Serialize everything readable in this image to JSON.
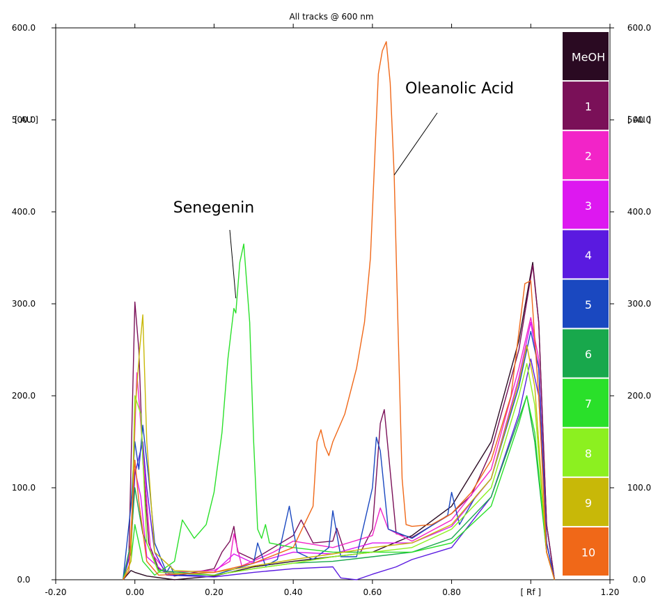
{
  "chart_data": {
    "type": "line",
    "title": "All tracks @ 600 nm",
    "y_unit_label": "[ AU ]",
    "x_unit_label": "[ Rf ]",
    "xlim": [
      -0.2,
      1.2
    ],
    "ylim": [
      0,
      600
    ],
    "x_ticks": [
      "-0.20",
      "0.00",
      "0.20",
      "0.40",
      "0.60",
      "0.80",
      "[ Rf ]",
      "1.20"
    ],
    "x_tick_values": [
      -0.2,
      0.0,
      0.2,
      0.4,
      0.6,
      0.8,
      1.0,
      1.2
    ],
    "y_ticks": [
      "0.0",
      "100.0",
      "200.0",
      "300.0",
      "400.0",
      "500.0",
      "600.0"
    ],
    "y_tick_values": [
      0,
      100,
      200,
      300,
      400,
      500,
      600
    ],
    "legend": {
      "placement": "right",
      "entries": [
        {
          "label": "MeOH",
          "color": "#2a0a22"
        },
        {
          "label": "1",
          "color": "#7a1058"
        },
        {
          "label": "2",
          "color": "#f224c8"
        },
        {
          "label": "3",
          "color": "#dd18f0"
        },
        {
          "label": "4",
          "color": "#5a1ae0"
        },
        {
          "label": "5",
          "color": "#1a48c0"
        },
        {
          "label": "6",
          "color": "#18a84c"
        },
        {
          "label": "7",
          "color": "#2ae02a"
        },
        {
          "label": "8",
          "color": "#8cf020"
        },
        {
          "label": "9",
          "color": "#c8b808"
        },
        {
          "label": "10",
          "color": "#f06818"
        }
      ]
    },
    "annotations": [
      {
        "text": "Oleanolic Acid",
        "points_to": [
          0.655,
          440
        ]
      },
      {
        "text": "Senegenin",
        "points_to": [
          0.255,
          306
        ]
      }
    ],
    "series": [
      {
        "color": "#2a0a22",
        "points": [
          [
            -0.03,
            0
          ],
          [
            -0.01,
            10
          ],
          [
            0.0,
            8
          ],
          [
            0.03,
            4
          ],
          [
            0.1,
            0
          ],
          [
            0.2,
            4
          ],
          [
            0.3,
            14
          ],
          [
            0.4,
            20
          ],
          [
            0.5,
            25
          ],
          [
            0.6,
            30
          ],
          [
            0.7,
            48
          ],
          [
            0.8,
            80
          ],
          [
            0.9,
            150
          ],
          [
            0.97,
            260
          ],
          [
            1.005,
            345
          ],
          [
            1.02,
            280
          ],
          [
            1.04,
            60
          ],
          [
            1.06,
            0
          ]
        ]
      },
      {
        "color": "#7a1058",
        "points": [
          [
            -0.03,
            0
          ],
          [
            -0.015,
            30
          ],
          [
            0.0,
            302
          ],
          [
            0.01,
            250
          ],
          [
            0.02,
            130
          ],
          [
            0.035,
            40
          ],
          [
            0.06,
            12
          ],
          [
            0.1,
            4
          ],
          [
            0.2,
            12
          ],
          [
            0.22,
            30
          ],
          [
            0.24,
            42
          ],
          [
            0.25,
            58
          ],
          [
            0.26,
            30
          ],
          [
            0.3,
            22
          ],
          [
            0.35,
            35
          ],
          [
            0.4,
            48
          ],
          [
            0.42,
            65
          ],
          [
            0.45,
            40
          ],
          [
            0.5,
            42
          ],
          [
            0.51,
            56
          ],
          [
            0.53,
            30
          ],
          [
            0.57,
            30
          ],
          [
            0.6,
            55
          ],
          [
            0.62,
            170
          ],
          [
            0.63,
            185
          ],
          [
            0.64,
            140
          ],
          [
            0.66,
            50
          ],
          [
            0.7,
            46
          ],
          [
            0.8,
            72
          ],
          [
            0.85,
            92
          ],
          [
            0.9,
            140
          ],
          [
            0.97,
            250
          ],
          [
            1.005,
            342
          ],
          [
            1.02,
            280
          ],
          [
            1.04,
            60
          ],
          [
            1.06,
            0
          ]
        ]
      },
      {
        "color": "#f224c8",
        "points": [
          [
            -0.03,
            0
          ],
          [
            -0.01,
            40
          ],
          [
            0.005,
            225
          ],
          [
            0.02,
            140
          ],
          [
            0.04,
            30
          ],
          [
            0.08,
            8
          ],
          [
            0.2,
            10
          ],
          [
            0.24,
            20
          ],
          [
            0.25,
            50
          ],
          [
            0.27,
            15
          ],
          [
            0.35,
            30
          ],
          [
            0.4,
            42
          ],
          [
            0.5,
            35
          ],
          [
            0.6,
            48
          ],
          [
            0.62,
            78
          ],
          [
            0.64,
            55
          ],
          [
            0.7,
            42
          ],
          [
            0.8,
            65
          ],
          [
            0.9,
            120
          ],
          [
            0.97,
            230
          ],
          [
            1.0,
            285
          ],
          [
            1.02,
            240
          ],
          [
            1.04,
            40
          ],
          [
            1.06,
            0
          ]
        ]
      },
      {
        "color": "#dd18f0",
        "points": [
          [
            -0.03,
            0
          ],
          [
            -0.01,
            35
          ],
          [
            0.0,
            120
          ],
          [
            0.015,
            90
          ],
          [
            0.03,
            25
          ],
          [
            0.08,
            6
          ],
          [
            0.2,
            8
          ],
          [
            0.25,
            28
          ],
          [
            0.3,
            18
          ],
          [
            0.4,
            30
          ],
          [
            0.5,
            28
          ],
          [
            0.6,
            40
          ],
          [
            0.7,
            40
          ],
          [
            0.8,
            58
          ],
          [
            0.9,
            110
          ],
          [
            0.97,
            220
          ],
          [
            1.0,
            280
          ],
          [
            1.02,
            230
          ],
          [
            1.04,
            40
          ],
          [
            1.06,
            0
          ]
        ]
      },
      {
        "color": "#5a1ae0",
        "points": [
          [
            -0.03,
            0
          ],
          [
            -0.01,
            30
          ],
          [
            0.0,
            115
          ],
          [
            0.02,
            150
          ],
          [
            0.03,
            100
          ],
          [
            0.05,
            30
          ],
          [
            0.08,
            5
          ],
          [
            0.2,
            3
          ],
          [
            0.3,
            8
          ],
          [
            0.4,
            12
          ],
          [
            0.5,
            14
          ],
          [
            0.52,
            2
          ],
          [
            0.56,
            0
          ],
          [
            0.6,
            6
          ],
          [
            0.66,
            14
          ],
          [
            0.7,
            22
          ],
          [
            0.8,
            35
          ],
          [
            0.9,
            90
          ],
          [
            0.97,
            180
          ],
          [
            1.0,
            240
          ],
          [
            1.02,
            200
          ],
          [
            1.04,
            40
          ],
          [
            1.06,
            0
          ]
        ]
      },
      {
        "color": "#1a48c0",
        "points": [
          [
            -0.03,
            0
          ],
          [
            -0.01,
            80
          ],
          [
            0.0,
            150
          ],
          [
            0.01,
            120
          ],
          [
            0.02,
            168
          ],
          [
            0.035,
            110
          ],
          [
            0.05,
            40
          ],
          [
            0.08,
            8
          ],
          [
            0.09,
            15
          ],
          [
            0.1,
            5
          ],
          [
            0.2,
            5
          ],
          [
            0.3,
            18
          ],
          [
            0.31,
            40
          ],
          [
            0.33,
            15
          ],
          [
            0.36,
            22
          ],
          [
            0.39,
            80
          ],
          [
            0.41,
            30
          ],
          [
            0.45,
            22
          ],
          [
            0.49,
            35
          ],
          [
            0.5,
            75
          ],
          [
            0.52,
            25
          ],
          [
            0.56,
            25
          ],
          [
            0.6,
            100
          ],
          [
            0.61,
            155
          ],
          [
            0.62,
            140
          ],
          [
            0.64,
            55
          ],
          [
            0.7,
            45
          ],
          [
            0.79,
            70
          ],
          [
            0.8,
            95
          ],
          [
            0.82,
            60
          ],
          [
            0.86,
            90
          ],
          [
            0.9,
            110
          ],
          [
            0.97,
            210
          ],
          [
            1.0,
            270
          ],
          [
            1.02,
            230
          ],
          [
            1.04,
            40
          ],
          [
            1.06,
            0
          ]
        ]
      },
      {
        "color": "#18a84c",
        "points": [
          [
            -0.03,
            0
          ],
          [
            -0.01,
            40
          ],
          [
            0.0,
            100
          ],
          [
            0.02,
            50
          ],
          [
            0.06,
            10
          ],
          [
            0.2,
            5
          ],
          [
            0.3,
            12
          ],
          [
            0.4,
            18
          ],
          [
            0.5,
            20
          ],
          [
            0.6,
            25
          ],
          [
            0.7,
            30
          ],
          [
            0.8,
            45
          ],
          [
            0.9,
            90
          ],
          [
            0.97,
            175
          ],
          [
            0.99,
            200
          ],
          [
            1.01,
            150
          ],
          [
            1.04,
            30
          ],
          [
            1.06,
            0
          ]
        ]
      },
      {
        "color": "#2ae02a",
        "points": [
          [
            -0.03,
            0
          ],
          [
            -0.01,
            20
          ],
          [
            0.0,
            60
          ],
          [
            0.02,
            20
          ],
          [
            0.05,
            5
          ],
          [
            0.1,
            20
          ],
          [
            0.12,
            65
          ],
          [
            0.15,
            45
          ],
          [
            0.18,
            60
          ],
          [
            0.2,
            95
          ],
          [
            0.22,
            160
          ],
          [
            0.235,
            240
          ],
          [
            0.25,
            295
          ],
          [
            0.255,
            290
          ],
          [
            0.265,
            345
          ],
          [
            0.275,
            365
          ],
          [
            0.29,
            280
          ],
          [
            0.3,
            150
          ],
          [
            0.31,
            55
          ],
          [
            0.32,
            45
          ],
          [
            0.33,
            60
          ],
          [
            0.34,
            40
          ],
          [
            0.4,
            35
          ],
          [
            0.5,
            30
          ],
          [
            0.6,
            30
          ],
          [
            0.7,
            30
          ],
          [
            0.8,
            40
          ],
          [
            0.9,
            80
          ],
          [
            0.97,
            170
          ],
          [
            0.99,
            200
          ],
          [
            1.01,
            160
          ],
          [
            1.04,
            30
          ],
          [
            1.06,
            0
          ]
        ]
      },
      {
        "color": "#8cf020",
        "points": [
          [
            -0.03,
            0
          ],
          [
            -0.01,
            20
          ],
          [
            0.0,
            200
          ],
          [
            0.015,
            180
          ],
          [
            0.03,
            40
          ],
          [
            0.06,
            8
          ],
          [
            0.2,
            5
          ],
          [
            0.3,
            12
          ],
          [
            0.4,
            18
          ],
          [
            0.5,
            25
          ],
          [
            0.6,
            30
          ],
          [
            0.7,
            35
          ],
          [
            0.8,
            55
          ],
          [
            0.9,
            100
          ],
          [
            0.97,
            200
          ],
          [
            0.99,
            235
          ],
          [
            1.01,
            190
          ],
          [
            1.04,
            30
          ],
          [
            1.06,
            0
          ]
        ]
      },
      {
        "color": "#c8b808",
        "points": [
          [
            -0.03,
            0
          ],
          [
            -0.01,
            20
          ],
          [
            0.0,
            180
          ],
          [
            0.012,
            250
          ],
          [
            0.02,
            288
          ],
          [
            0.03,
            150
          ],
          [
            0.05,
            30
          ],
          [
            0.1,
            10
          ],
          [
            0.2,
            8
          ],
          [
            0.3,
            15
          ],
          [
            0.4,
            22
          ],
          [
            0.5,
            28
          ],
          [
            0.6,
            35
          ],
          [
            0.7,
            40
          ],
          [
            0.8,
            60
          ],
          [
            0.9,
            110
          ],
          [
            0.97,
            215
          ],
          [
            0.99,
            255
          ],
          [
            1.01,
            210
          ],
          [
            1.04,
            30
          ],
          [
            1.06,
            0
          ]
        ]
      },
      {
        "color": "#f06818",
        "points": [
          [
            -0.03,
            0
          ],
          [
            -0.015,
            10
          ],
          [
            0.0,
            130
          ],
          [
            0.01,
            85
          ],
          [
            0.03,
            20
          ],
          [
            0.06,
            5
          ],
          [
            0.2,
            8
          ],
          [
            0.3,
            18
          ],
          [
            0.4,
            35
          ],
          [
            0.45,
            80
          ],
          [
            0.46,
            150
          ],
          [
            0.47,
            163
          ],
          [
            0.48,
            145
          ],
          [
            0.49,
            135
          ],
          [
            0.5,
            150
          ],
          [
            0.53,
            180
          ],
          [
            0.56,
            230
          ],
          [
            0.58,
            280
          ],
          [
            0.595,
            350
          ],
          [
            0.605,
            450
          ],
          [
            0.615,
            550
          ],
          [
            0.625,
            575
          ],
          [
            0.635,
            585
          ],
          [
            0.645,
            540
          ],
          [
            0.655,
            440
          ],
          [
            0.665,
            270
          ],
          [
            0.675,
            110
          ],
          [
            0.685,
            60
          ],
          [
            0.7,
            58
          ],
          [
            0.75,
            60
          ],
          [
            0.8,
            72
          ],
          [
            0.85,
            95
          ],
          [
            0.9,
            130
          ],
          [
            0.95,
            200
          ],
          [
            0.985,
            322
          ],
          [
            1.0,
            325
          ],
          [
            1.02,
            200
          ],
          [
            1.04,
            30
          ],
          [
            1.06,
            0
          ]
        ]
      }
    ]
  }
}
